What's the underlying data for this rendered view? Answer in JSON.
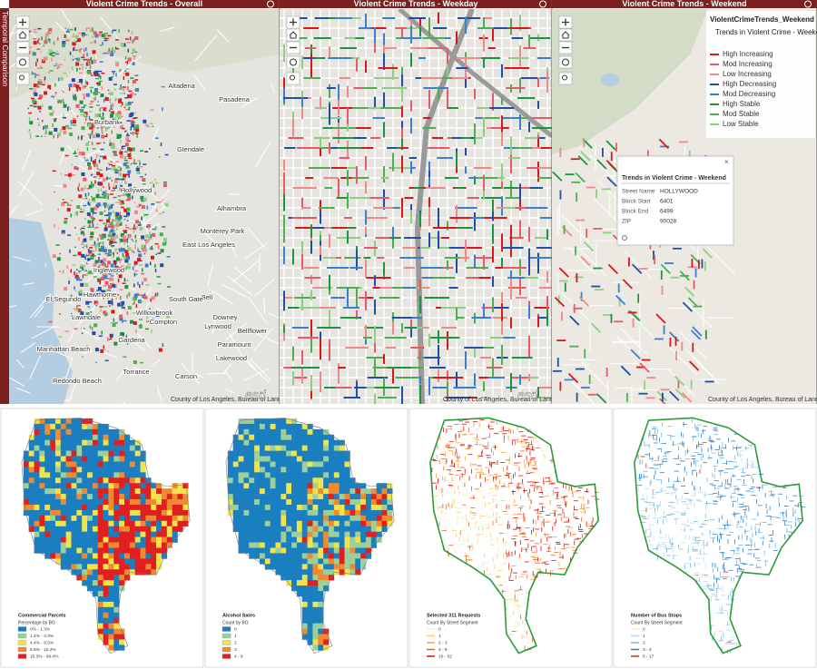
{
  "panels": [
    {
      "title": "Violent Crime Trends - Overall",
      "attribution": "County of Los Angeles, Bureau of Land Mana",
      "logo": "esri"
    },
    {
      "title": "Violent Crime Trends - Weekday",
      "attribution": "County of Los Angeles, Bureau of Land Mana",
      "logo": "esri"
    },
    {
      "title": "Violent Crime Trends - Weekend",
      "attribution": "County of Los Angeles, Bureau of Land Mana"
    }
  ],
  "side_tab": "Temporal Comparison",
  "places": [
    "Burbank",
    "Altadena",
    "Pasadena",
    "Glendale",
    "Hollywood",
    "Alhambra",
    "Monterey Park",
    "East Los Angeles",
    "Inglewood",
    "Bell",
    "Downey",
    "Lynwood",
    "El Segundo",
    "Hawthorne",
    "Lawndale",
    "Gardena",
    "Compton",
    "Paramount",
    "Bellflower",
    "Manhattan Beach",
    "Redondo Beach",
    "Torrance",
    "Carson",
    "Lakewood",
    "South Gate",
    "Willowbrook"
  ],
  "legend": {
    "layer": "ViolentCrimeTrends_Weekend",
    "title": "Trends in Violent Crime - Weekend",
    "items": [
      {
        "label": "High Increasing",
        "color": "#d7191c"
      },
      {
        "label": "Mod Increasing",
        "color": "#e85a6a"
      },
      {
        "label": "Low Increasing",
        "color": "#f08a8a"
      },
      {
        "label": "High Decreasing",
        "color": "#1f4fa8"
      },
      {
        "label": "Mod Decreasing",
        "color": "#3a7fd0"
      },
      {
        "label": "High Stable",
        "color": "#1a9641"
      },
      {
        "label": "Mod Stable",
        "color": "#4cb050"
      },
      {
        "label": "Low Stable",
        "color": "#8fd080"
      }
    ]
  },
  "popup": {
    "title": "Trends in Violent Crime - Weekend",
    "fields": [
      [
        "Street Name",
        "HOLLYWOOD"
      ],
      [
        "Block Start",
        "6401"
      ],
      [
        "Block End",
        "6499"
      ],
      [
        "ZIP",
        "90028"
      ]
    ]
  },
  "thematic_maps": [
    {
      "title": "Commercial Parcels",
      "subtitle": "Percentage by BG",
      "classes": [
        {
          "label": "0% - 1.3%",
          "color": "#1a7fc0"
        },
        {
          "label": "1.4% - 4.3%",
          "color": "#9ccf9a"
        },
        {
          "label": "4.4% - 8.5%",
          "color": "#f2e34a"
        },
        {
          "label": "8.6% - 15.2%",
          "color": "#f08a30"
        },
        {
          "label": "15.3% - 99.4%",
          "color": "#e02020"
        }
      ]
    },
    {
      "title": "Alcohol Sales",
      "subtitle": "Count by BG",
      "classes": [
        {
          "label": "0",
          "color": "#1a7fc0"
        },
        {
          "label": "1",
          "color": "#9ccf9a"
        },
        {
          "label": "2",
          "color": "#f2e34a"
        },
        {
          "label": "3",
          "color": "#f08a30"
        },
        {
          "label": "4 - 9",
          "color": "#e02020"
        }
      ]
    },
    {
      "title": "Selected 311 Requests",
      "subtitle": "Count By Street Segment",
      "classes": [
        {
          "label": "0",
          "color": "#f5f0c8"
        },
        {
          "label": "1",
          "color": "#f8d070"
        },
        {
          "label": "2 - 3",
          "color": "#f5a040"
        },
        {
          "label": "4 - 9",
          "color": "#ee6020"
        },
        {
          "label": "10 - 52",
          "color": "#d81010"
        }
      ]
    },
    {
      "title": "Number of Bus Stops",
      "subtitle": "Count By Street Segment",
      "classes": [
        {
          "label": "0",
          "color": "#f5f0c8"
        },
        {
          "label": "1",
          "color": "#b8dcf0"
        },
        {
          "label": "2",
          "color": "#6fb8e0"
        },
        {
          "label": "3 - 4",
          "color": "#3080c8"
        },
        {
          "label": "5 - 17",
          "color": "#e02020"
        }
      ]
    }
  ]
}
